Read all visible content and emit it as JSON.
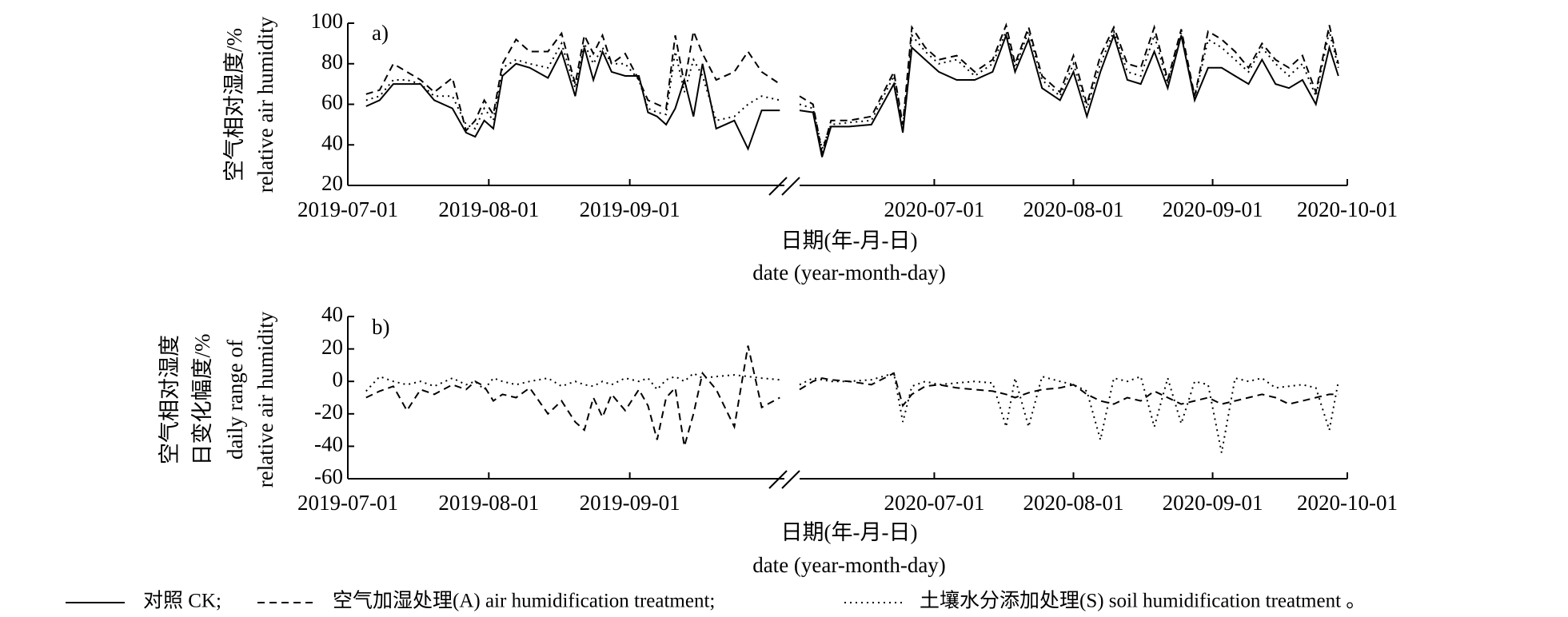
{
  "chart_data": [
    {
      "type": "line",
      "panel_label": "a)",
      "ylabel": [
        "空气相对湿度/%",
        "relative air humidity"
      ],
      "xlabel": [
        "日期(年-月-日)",
        "date (year-month-day)"
      ],
      "x_segments": [
        {
          "xlim": [
            "2019-07-01",
            "2019-10-05"
          ],
          "xticks": [
            "2019-07-01",
            "2019-08-01",
            "2019-09-01"
          ]
        },
        {
          "xlim": [
            "2020-06-01",
            "2020-10-01"
          ],
          "xticks": [
            "2020-07-01",
            "2020-08-01",
            "2020-09-01",
            "2020-10-01"
          ]
        }
      ],
      "x": [
        "2019-07-05",
        "2019-07-08",
        "2019-07-11",
        "2019-07-14",
        "2019-07-17",
        "2019-07-20",
        "2019-07-24",
        "2019-07-27",
        "2019-07-29",
        "2019-07-31",
        "2019-08-02",
        "2019-08-04",
        "2019-08-07",
        "2019-08-10",
        "2019-08-14",
        "2019-08-17",
        "2019-08-20",
        "2019-08-22",
        "2019-08-24",
        "2019-08-26",
        "2019-08-28",
        "2019-08-31",
        "2019-09-03",
        "2019-09-05",
        "2019-09-07",
        "2019-09-09",
        "2019-09-11",
        "2019-09-13",
        "2019-09-15",
        "2019-09-17",
        "2019-09-20",
        "2019-09-24",
        "2019-09-27",
        "2019-09-30",
        "2019-10-04",
        "2020-06-01",
        "2020-06-04",
        "2020-06-06",
        "2020-06-08",
        "2020-06-12",
        "2020-06-17",
        "2020-06-22",
        "2020-06-24",
        "2020-06-26",
        "2020-06-29",
        "2020-07-02",
        "2020-07-06",
        "2020-07-10",
        "2020-07-14",
        "2020-07-17",
        "2020-07-19",
        "2020-07-22",
        "2020-07-25",
        "2020-07-29",
        "2020-08-01",
        "2020-08-04",
        "2020-08-07",
        "2020-08-10",
        "2020-08-13",
        "2020-08-16",
        "2020-08-19",
        "2020-08-22",
        "2020-08-25",
        "2020-08-28",
        "2020-08-31",
        "2020-09-03",
        "2020-09-06",
        "2020-09-09",
        "2020-09-12",
        "2020-09-15",
        "2020-09-18",
        "2020-09-21",
        "2020-09-24",
        "2020-09-27",
        "2020-09-29"
      ],
      "ylim": [
        20,
        100
      ],
      "yticks": [
        20,
        40,
        60,
        80,
        100
      ],
      "series": [
        {
          "name": "对照 CK;",
          "color": "#000000",
          "dash": "solid",
          "values": [
            59,
            62,
            70,
            70,
            70,
            62,
            58,
            46,
            44,
            52,
            48,
            74,
            80,
            78,
            73,
            86,
            64,
            88,
            72,
            86,
            76,
            74,
            74,
            56,
            54,
            50,
            58,
            72,
            54,
            80,
            48,
            52,
            38,
            57,
            57,
            57,
            56,
            34,
            49,
            49,
            50,
            70,
            46,
            88,
            82,
            76,
            72,
            72,
            76,
            94,
            76,
            92,
            68,
            62,
            76,
            54,
            76,
            94,
            72,
            70,
            86,
            68,
            94,
            62,
            78,
            78,
            74,
            70,
            82,
            70,
            68,
            72,
            60,
            88,
            74
          ]
        },
        {
          "name": "空气加湿处理(A) air humidification treatment;",
          "color": "#000000",
          "dash": "dashed",
          "values": [
            65,
            67,
            80,
            76,
            72,
            66,
            73,
            47,
            52,
            62,
            55,
            80,
            92,
            86,
            86,
            95,
            70,
            94,
            85,
            94,
            80,
            85,
            72,
            62,
            60,
            58,
            94,
            70,
            96,
            85,
            72,
            76,
            86,
            76,
            70,
            64,
            60,
            36,
            52,
            52,
            54,
            76,
            50,
            98,
            88,
            82,
            84,
            76,
            82,
            99,
            80,
            98,
            74,
            66,
            84,
            60,
            84,
            98,
            80,
            78,
            98,
            72,
            97,
            64,
            96,
            92,
            86,
            78,
            90,
            82,
            78,
            84,
            66,
            99,
            80
          ]
        },
        {
          "name": "土壤水分添加处理(S) soil humidification treatment 。",
          "color": "#000000",
          "dash": "dotted",
          "values": [
            62,
            64,
            72,
            72,
            70,
            64,
            64,
            50,
            48,
            58,
            52,
            78,
            82,
            80,
            78,
            90,
            68,
            90,
            80,
            88,
            80,
            80,
            72,
            58,
            56,
            55,
            86,
            66,
            82,
            74,
            52,
            54,
            60,
            64,
            62,
            60,
            58,
            38,
            50,
            51,
            52,
            74,
            48,
            94,
            86,
            80,
            82,
            74,
            80,
            96,
            78,
            96,
            72,
            64,
            80,
            58,
            80,
            96,
            76,
            74,
            94,
            70,
            95,
            63,
            92,
            88,
            82,
            76,
            88,
            80,
            74,
            80,
            64,
            96,
            78
          ]
        }
      ]
    },
    {
      "type": "line",
      "panel_label": "b)",
      "ylabel": [
        "空气相对湿度",
        "日变化幅度/%",
        "daily range of",
        "relative air humidity"
      ],
      "xlabel": [
        "日期(年-月-日)",
        "date (year-month-day)"
      ],
      "x_segments": [
        {
          "xlim": [
            "2019-07-01",
            "2019-10-05"
          ],
          "xticks": [
            "2019-07-01",
            "2019-08-01",
            "2019-09-01"
          ]
        },
        {
          "xlim": [
            "2020-06-01",
            "2020-10-01"
          ],
          "xticks": [
            "2020-07-01",
            "2020-08-01",
            "2020-09-01",
            "2020-10-01"
          ]
        }
      ],
      "x": [
        "2019-07-05",
        "2019-07-08",
        "2019-07-11",
        "2019-07-14",
        "2019-07-17",
        "2019-07-20",
        "2019-07-24",
        "2019-07-27",
        "2019-07-29",
        "2019-07-31",
        "2019-08-02",
        "2019-08-04",
        "2019-08-07",
        "2019-08-10",
        "2019-08-14",
        "2019-08-17",
        "2019-08-20",
        "2019-08-22",
        "2019-08-24",
        "2019-08-26",
        "2019-08-28",
        "2019-08-31",
        "2019-09-03",
        "2019-09-05",
        "2019-09-07",
        "2019-09-09",
        "2019-09-11",
        "2019-09-13",
        "2019-09-15",
        "2019-09-17",
        "2019-09-20",
        "2019-09-24",
        "2019-09-27",
        "2019-09-30",
        "2019-10-04",
        "2020-06-01",
        "2020-06-04",
        "2020-06-06",
        "2020-06-08",
        "2020-06-12",
        "2020-06-17",
        "2020-06-22",
        "2020-06-24",
        "2020-06-26",
        "2020-06-29",
        "2020-07-02",
        "2020-07-06",
        "2020-07-10",
        "2020-07-14",
        "2020-07-17",
        "2020-07-19",
        "2020-07-22",
        "2020-07-25",
        "2020-07-29",
        "2020-08-01",
        "2020-08-04",
        "2020-08-07",
        "2020-08-10",
        "2020-08-13",
        "2020-08-16",
        "2020-08-19",
        "2020-08-22",
        "2020-08-25",
        "2020-08-28",
        "2020-08-31",
        "2020-09-03",
        "2020-09-06",
        "2020-09-09",
        "2020-09-12",
        "2020-09-15",
        "2020-09-18",
        "2020-09-21",
        "2020-09-24",
        "2020-09-27",
        "2020-09-29"
      ],
      "ylim": [
        -60,
        40
      ],
      "yticks": [
        -60,
        -40,
        -20,
        0,
        20,
        40
      ],
      "series": [
        {
          "color": "#000000",
          "dash": "dashed",
          "values": [
            -10,
            -6,
            -3,
            -18,
            -5,
            -8,
            -2,
            -5,
            0,
            -3,
            -12,
            -8,
            -10,
            -4,
            -20,
            -12,
            -25,
            -30,
            -10,
            -22,
            -8,
            -18,
            -5,
            -15,
            -36,
            -10,
            -4,
            -40,
            -20,
            5,
            -5,
            -28,
            22,
            -16,
            -10,
            -5,
            0,
            2,
            1,
            0,
            -2,
            5,
            -15,
            -8,
            -3,
            -2,
            -4,
            -5,
            -6,
            -8,
            -10,
            -7,
            -5,
            -4,
            -2,
            -8,
            -12,
            -14,
            -10,
            -12,
            -6,
            -10,
            -14,
            -12,
            -10,
            -14,
            -12,
            -10,
            -8,
            -10,
            -14,
            -12,
            -10,
            -8,
            -8
          ]
        },
        {
          "color": "#000000",
          "dash": "dotted",
          "values": [
            -6,
            3,
            0,
            -2,
            0,
            -3,
            2,
            -2,
            0,
            -5,
            2,
            0,
            -2,
            0,
            2,
            -3,
            0,
            -2,
            -3,
            0,
            -2,
            2,
            0,
            2,
            -5,
            1,
            3,
            0,
            5,
            2,
            3,
            4,
            3,
            2,
            1,
            -2,
            2,
            1,
            0,
            0,
            1,
            5,
            -25,
            -3,
            0,
            -2,
            -1,
            0,
            -1,
            -28,
            2,
            -28,
            3,
            0,
            -2,
            -6,
            -36,
            2,
            0,
            3,
            -28,
            2,
            -26,
            0,
            -2,
            -44,
            2,
            0,
            2,
            -4,
            -3,
            -2,
            -4,
            -30,
            0
          ]
        }
      ]
    }
  ]
}
